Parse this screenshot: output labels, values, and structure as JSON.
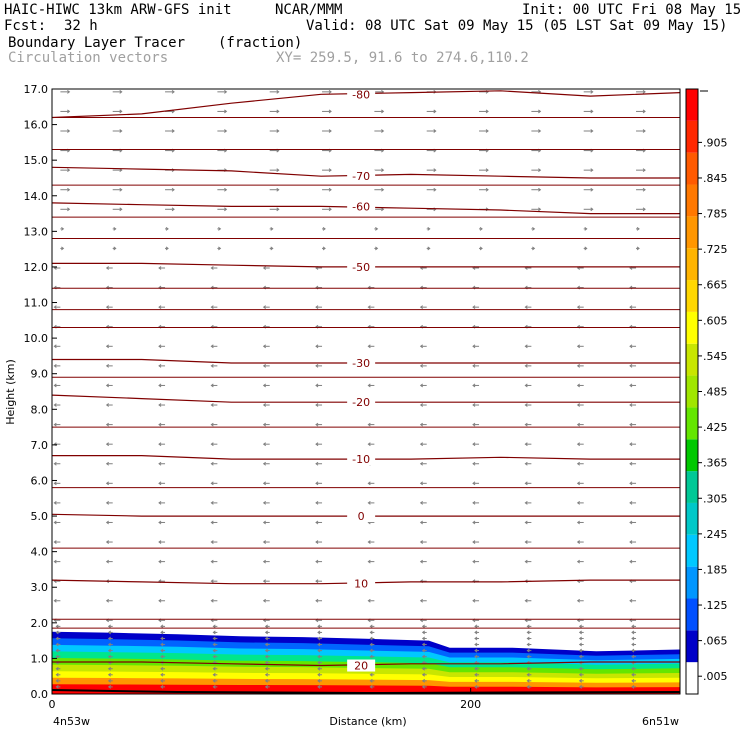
{
  "header": {
    "model": "HAIC-HIWC 13km ARW-GFS init",
    "org": "NCAR/MMM",
    "init": "Init: 00 UTC Fri 08 May 15",
    "fcst_label": "Fcst:",
    "fcst_value": "32 h",
    "valid": "Valid: 08 UTC Sat 09 May 15 (05 LST Sat 09 May 15)",
    "field": "Boundary Layer Tracer",
    "units": "(fraction)",
    "vectors": "Circulation vectors",
    "xy": "XY= 259.5, 91.6 to 274.6,110.2"
  },
  "colors": {
    "contour": "#800000",
    "vector": "#808080",
    "frame": "#000000"
  },
  "chart_data": {
    "type": "heatmap",
    "ylabel": "Height (km)",
    "xlabel": "Distance (km)",
    "x_ticks": [
      "0",
      "200"
    ],
    "x_tick_values": [
      0,
      200
    ],
    "xlim": [
      0,
      300
    ],
    "ylim": [
      0,
      17
    ],
    "y_ticks": [
      "0.0",
      "1.0",
      "2.0",
      "3.0",
      "4.0",
      "5.0",
      "6.0",
      "7.0",
      "8.0",
      "9.0",
      "10.0",
      "11.0",
      "12.0",
      "13.0",
      "14.0",
      "15.0",
      "16.0",
      "17.0"
    ],
    "x_left_label": "4n53w",
    "x_right_label": "6n51w",
    "colorbar": {
      "labels": [
        ".005",
        ".065",
        ".125",
        ".185",
        ".245",
        ".305",
        ".365",
        ".425",
        ".485",
        ".545",
        ".605",
        ".665",
        ".725",
        ".785",
        ".845",
        ".905"
      ],
      "colors": [
        "#ffffff",
        "#0000c8",
        "#0050ff",
        "#0096ff",
        "#00c8ff",
        "#00c8c8",
        "#00c896",
        "#00c800",
        "#64e600",
        "#a0e600",
        "#c8e600",
        "#ffff00",
        "#ffd700",
        "#ffb400",
        "#ff9600",
        "#ff7800",
        "#ff5a00",
        "#ff2800",
        "#ff0000"
      ]
    },
    "tracer_layer": {
      "top_km": [
        1.75,
        1.72,
        1.68,
        1.62,
        1.6,
        1.55,
        1.5,
        1.3,
        1.3,
        1.2,
        1.25
      ],
      "x_km": [
        0,
        30,
        60,
        90,
        120,
        150,
        180,
        190,
        220,
        260,
        300
      ],
      "color_bands": [
        "#0000c8",
        "#0064ff",
        "#00c8ff",
        "#00e68c",
        "#64e600",
        "#c8e600",
        "#ffff00",
        "#ff9600",
        "#ff0000"
      ]
    },
    "contours": [
      {
        "label": "-80",
        "height_km": [
          16.2,
          16.3,
          16.6,
          16.85,
          16.9,
          16.95,
          16.8,
          16.9
        ]
      },
      {
        "label": "-70",
        "height_km": [
          14.8,
          14.75,
          14.7,
          14.55,
          14.6,
          14.55,
          14.5,
          14.5
        ]
      },
      {
        "label": "-60",
        "height_km": [
          13.8,
          13.75,
          13.7,
          13.7,
          13.65,
          13.6,
          13.5,
          13.5
        ]
      },
      {
        "label": "-50",
        "height_km": [
          12.1,
          12.1,
          12.05,
          12.0,
          12.0,
          12.0,
          12.0,
          12.0
        ]
      },
      {
        "label": "-30",
        "height_km": [
          9.4,
          9.4,
          9.3,
          9.3,
          9.3,
          9.3,
          9.3,
          9.3
        ]
      },
      {
        "label": "-20",
        "height_km": [
          8.4,
          8.3,
          8.2,
          8.2,
          8.2,
          8.2,
          8.2,
          8.2
        ]
      },
      {
        "label": "-10",
        "height_km": [
          6.7,
          6.7,
          6.6,
          6.6,
          6.6,
          6.65,
          6.6,
          6.6
        ]
      },
      {
        "label": "0",
        "height_km": [
          5.05,
          5.0,
          5.0,
          5.0,
          5.0,
          5.0,
          5.0,
          5.0
        ]
      },
      {
        "label": "10",
        "height_km": [
          3.2,
          3.15,
          3.1,
          3.1,
          3.15,
          3.15,
          3.2,
          3.2
        ]
      },
      {
        "label": "20",
        "height_km": [
          0.9,
          0.9,
          0.85,
          0.8,
          0.85,
          0.85,
          0.9,
          0.9
        ]
      }
    ],
    "unlabeled_contours_km": [
      16.2,
      15.3,
      14.3,
      13.4,
      12.8,
      11.4,
      10.8,
      10.3,
      8.9,
      7.5,
      5.8,
      4.1,
      2.1,
      1.85
    ]
  }
}
